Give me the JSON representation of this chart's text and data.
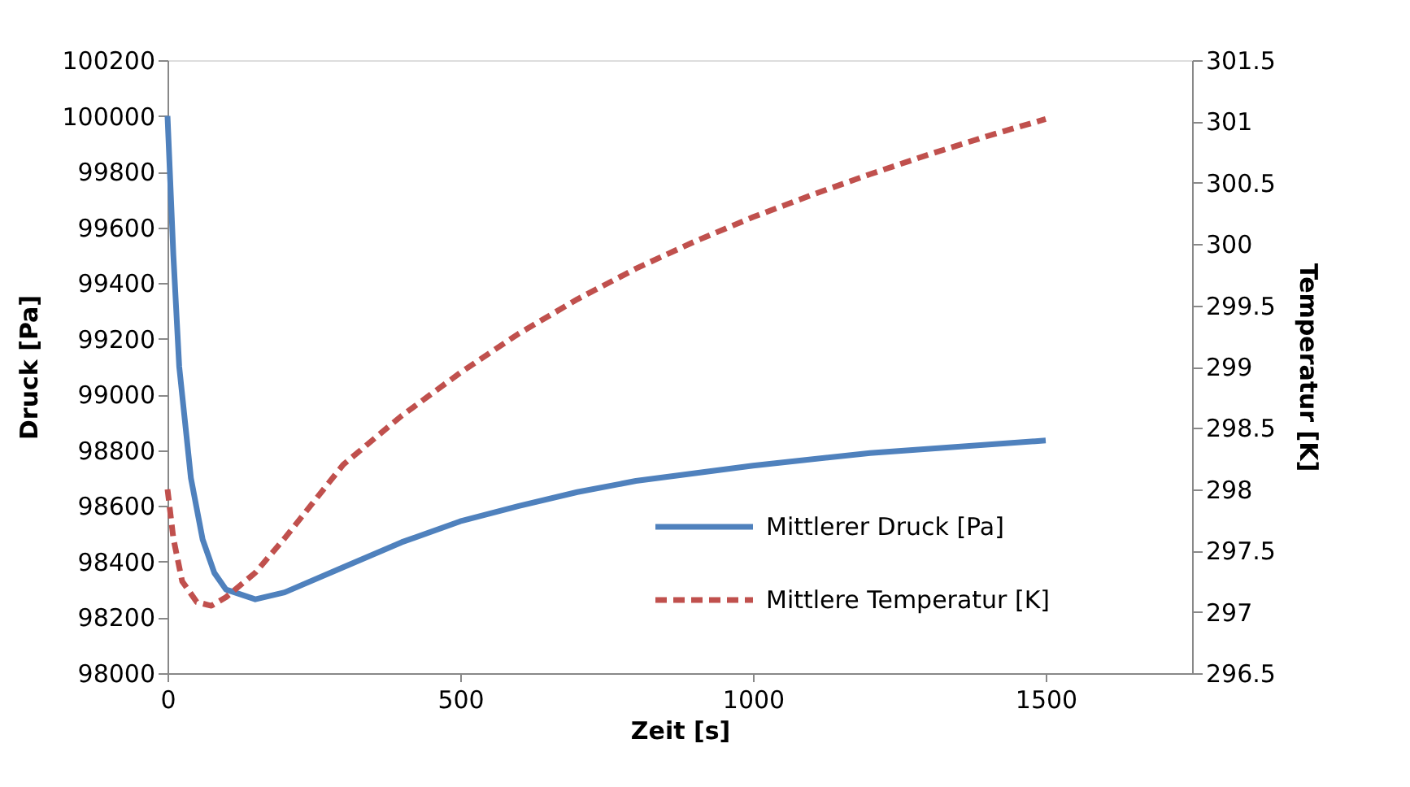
{
  "chart_data": {
    "type": "line",
    "xlabel": "Zeit [s]",
    "ylabel": "Druck [Pa]",
    "y2label": "Temperatur [K]",
    "xlim": [
      0,
      1750
    ],
    "xticks": [
      0,
      500,
      1000,
      1500
    ],
    "ylim": [
      98000,
      100200
    ],
    "yticks": [
      98000,
      98200,
      98400,
      98600,
      98800,
      99000,
      99200,
      99400,
      99600,
      99800,
      100000,
      100200
    ],
    "y2lim": [
      296.5,
      301.5
    ],
    "y2ticks": [
      296.5,
      297,
      297.5,
      298,
      298.5,
      299,
      299.5,
      300,
      300.5,
      301,
      301.5
    ],
    "grid": false,
    "legend": "bottom right",
    "marker": "none",
    "series": [
      {
        "name": "Mittlerer Druck  [Pa]",
        "color": "#4f81bd",
        "line_style": "solid",
        "x": [
          0,
          10,
          20,
          40,
          60,
          80,
          100,
          150,
          200,
          300,
          400,
          500,
          600,
          700,
          800,
          1000,
          1200,
          1500
        ],
        "values": [
          100000,
          99500,
          99100,
          98700,
          98480,
          98360,
          98300,
          98265,
          98290,
          98380,
          98470,
          98545,
          98600,
          98650,
          98690,
          98745,
          98790,
          98835
        ]
      },
      {
        "name": "Mittlere Temperatur [K]",
        "color": "#c0504d",
        "line_style": "dashed",
        "axis": "y2",
        "x": [
          0,
          10,
          25,
          50,
          75,
          100,
          150,
          200,
          300,
          400,
          500,
          600,
          700,
          800,
          900,
          1000,
          1100,
          1200,
          1300,
          1400,
          1500
        ],
        "values": [
          298,
          297.6,
          297.25,
          297.08,
          297.05,
          297.12,
          297.32,
          297.6,
          298.2,
          298.6,
          298.95,
          299.27,
          299.55,
          299.8,
          300.02,
          300.22,
          300.4,
          300.57,
          300.73,
          300.88,
          301.02
        ]
      }
    ]
  }
}
